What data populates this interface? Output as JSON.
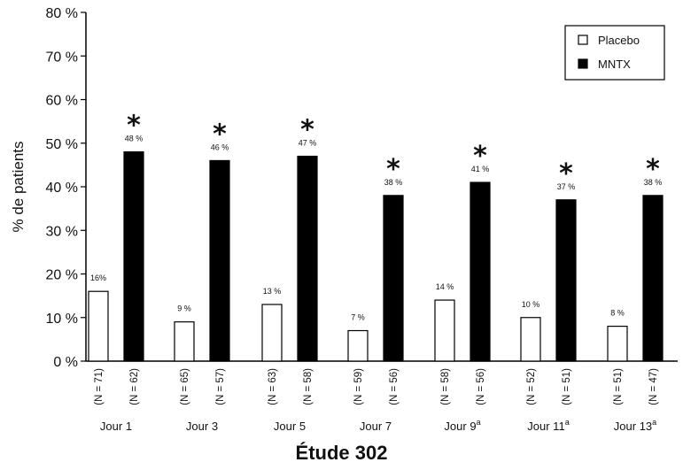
{
  "chart_data": {
    "type": "bar",
    "title": "Étude 302",
    "ylabel": "% de patients",
    "xlabel": "",
    "ylim": [
      0,
      80
    ],
    "yticks": [
      "0 %",
      "10 %",
      "20 %",
      "30 %",
      "40 %",
      "50 %",
      "60 %",
      "70 %",
      "80 %"
    ],
    "grid": false,
    "legend_position": "top-right",
    "categories": [
      "Jour 1",
      "Jour 3",
      "Jour 5",
      "Jour 7",
      "Jour 9",
      "Jour 11",
      "Jour 13"
    ],
    "category_superscripts": [
      "",
      "",
      "",
      "",
      "a",
      "a",
      "a"
    ],
    "significance_marker": "*",
    "series": [
      {
        "name": "Placebo",
        "color": "#ffffff",
        "values": [
          16,
          9,
          13,
          7,
          14,
          10,
          8
        ],
        "data_labels": [
          "16%",
          "9 %",
          "13 %",
          "7 %",
          "14 %",
          "10 %",
          "8 %"
        ],
        "n_labels": [
          "(N = 71)",
          "(N = 65)",
          "(N = 63)",
          "(N = 59)",
          "(N = 58)",
          "(N = 52)",
          "(N = 51)"
        ]
      },
      {
        "name": "MNTX",
        "color": "#000000",
        "values": [
          48,
          46,
          47,
          38,
          41,
          37,
          38
        ],
        "data_labels": [
          "48 %",
          "46 %",
          "47 %",
          "38 %",
          "41 %",
          "37 %",
          "38 %"
        ],
        "n_labels": [
          "(N = 62)",
          "(N = 57)",
          "(N = 58)",
          "(N = 56)",
          "(N = 56)",
          "(N = 51)",
          "(N = 47)"
        ]
      }
    ]
  }
}
